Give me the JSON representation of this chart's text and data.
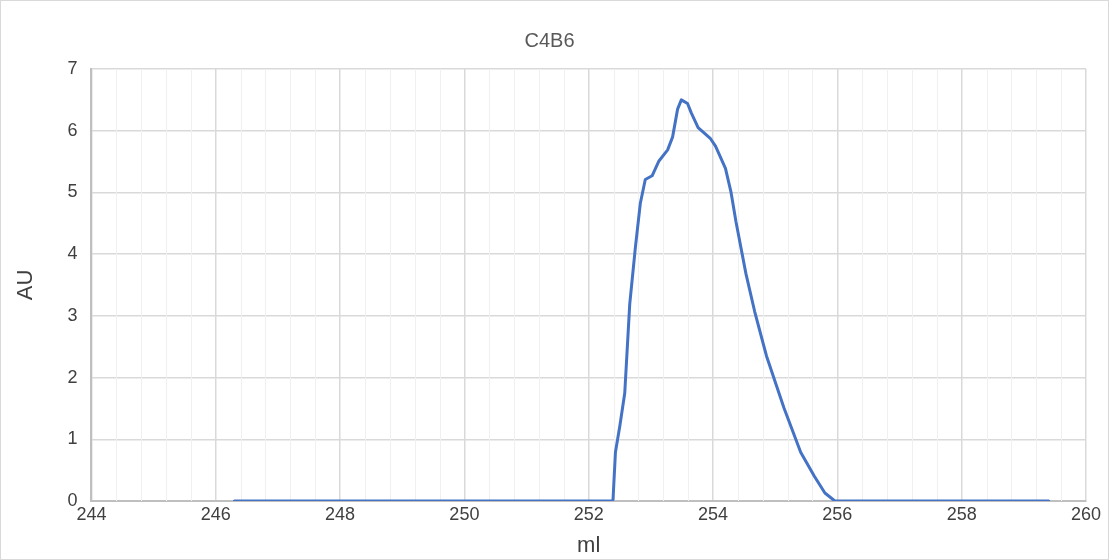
{
  "chart_data": {
    "type": "line",
    "title": "C4B6",
    "xlabel": "ml",
    "ylabel": "AU",
    "series": [
      {
        "color": "#4472c4",
        "x": [
          246.3,
          252.39,
          252.43,
          252.5,
          252.58,
          252.66,
          252.75,
          252.83,
          252.91,
          253.02,
          253.13,
          253.27,
          253.35,
          253.43,
          253.49,
          253.59,
          253.65,
          253.76,
          253.96,
          254.04,
          254.2,
          254.29,
          254.37,
          254.53,
          254.67,
          254.86,
          255.14,
          255.41,
          255.63,
          255.8,
          255.96,
          259.4
        ],
        "values": [
          0,
          0,
          0.79,
          1.21,
          1.75,
          3.19,
          4.1,
          4.82,
          5.21,
          5.27,
          5.51,
          5.69,
          5.9,
          6.35,
          6.5,
          6.44,
          6.29,
          6.05,
          5.87,
          5.75,
          5.39,
          5.0,
          4.52,
          3.68,
          3.07,
          2.35,
          1.51,
          0.79,
          0.4,
          0.13,
          0,
          0
        ]
      }
    ],
    "xlim": [
      244,
      260
    ],
    "xticks": [
      244,
      246,
      248,
      250,
      252,
      254,
      256,
      258,
      260
    ],
    "ylim": [
      0,
      7
    ],
    "yticks": [
      0,
      1,
      2,
      3,
      4,
      5,
      6,
      7
    ],
    "grid": true,
    "legend": false,
    "marker": "none",
    "line_style": "solid"
  }
}
